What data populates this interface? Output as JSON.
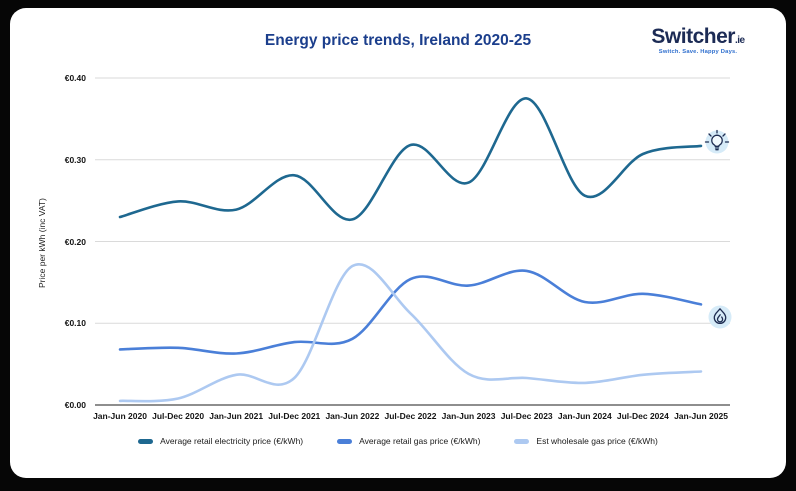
{
  "page": {
    "background": "#060606",
    "card_background": "#ffffff"
  },
  "header": {
    "title": "Energy price trends, Ireland 2020-25",
    "title_color": "#1b3e8c"
  },
  "logo": {
    "brand": "Switcher",
    "tld": ".ie",
    "tagline": "Switch. Save. Happy Days.",
    "brand_color": "#1c2b55",
    "tagline_color": "#2f6fce"
  },
  "icons": {
    "electricity_icon": "lightbulb-icon",
    "gas_icon": "flame-icon",
    "badge_color": "#d6ebf8",
    "glyph_color": "#1e2d52"
  },
  "chart_data": {
    "type": "line",
    "title": "Energy price trends, Ireland 2020-25",
    "xlabel": "",
    "ylabel": "Price per kWh (inc VAT)",
    "ylim": [
      0,
      0.4
    ],
    "grid": true,
    "legend_position": "bottom",
    "smooth": true,
    "categories": [
      "Jan-Jun 2020",
      "Jul-Dec 2020",
      "Jan-Jun 2021",
      "Jul-Dec 2021",
      "Jan-Jun 2022",
      "Jul-Dec 2022",
      "Jan-Jun 2023",
      "Jul-Dec 2023",
      "Jan-Jun 2024",
      "Jul-Dec 2024",
      "Jan-Jun 2025"
    ],
    "yticks": [
      {
        "label": "€0.00",
        "value": 0.0
      },
      {
        "label": "€0.10",
        "value": 0.1
      },
      {
        "label": "€0.20",
        "value": 0.2
      },
      {
        "label": "€0.30",
        "value": 0.3
      },
      {
        "label": "€0.40",
        "value": 0.4
      }
    ],
    "series": [
      {
        "name": "Average retail electricity price (€/kWh)",
        "color": "#1e6890",
        "values": [
          0.23,
          0.249,
          0.239,
          0.281,
          0.227,
          0.318,
          0.272,
          0.375,
          0.256,
          0.307,
          0.317
        ]
      },
      {
        "name": "Average retail gas price (€/kWh)",
        "color": "#4a7fd8",
        "values": [
          0.068,
          0.07,
          0.063,
          0.077,
          0.081,
          0.154,
          0.146,
          0.164,
          0.126,
          0.136,
          0.123
        ]
      },
      {
        "name": "Est wholesale gas price (€/kWh)",
        "color": "#adc9f1",
        "values": [
          0.005,
          0.008,
          0.037,
          0.033,
          0.17,
          0.112,
          0.038,
          0.033,
          0.027,
          0.037,
          0.041
        ]
      }
    ],
    "grid_color": "#dadada",
    "baseline_color": "#4a4a4a"
  }
}
